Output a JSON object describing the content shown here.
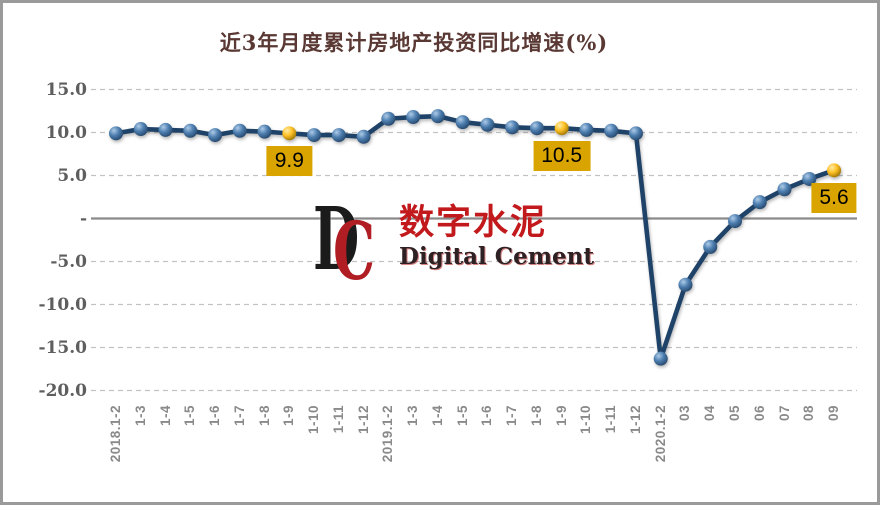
{
  "chart_data": {
    "type": "line",
    "title": "近3年月度累计房地产投资同比增速(%)",
    "xlabel": "",
    "ylabel": "",
    "ylim": [
      -20,
      15
    ],
    "grid": "horizontal-dashed",
    "legend": "none",
    "categories": [
      "2018.1-2",
      "1-3",
      "1-4",
      "1-5",
      "1-6",
      "1-7",
      "1-8",
      "1-9",
      "1-10",
      "1-11",
      "1-12",
      "2019.1-2",
      "1-3",
      "1-4",
      "1-5",
      "1-6",
      "1-7",
      "1-8",
      "1-9",
      "1-10",
      "1-11",
      "1-12",
      "2020.1-2",
      "03",
      "04",
      "05",
      "06",
      "07",
      "08",
      "09"
    ],
    "values": [
      9.9,
      10.4,
      10.3,
      10.2,
      9.7,
      10.2,
      10.1,
      9.9,
      9.7,
      9.7,
      9.5,
      11.6,
      11.8,
      11.9,
      11.2,
      10.9,
      10.6,
      10.5,
      10.5,
      10.3,
      10.2,
      9.9,
      -16.3,
      -7.7,
      -3.3,
      -0.3,
      1.9,
      3.4,
      4.6,
      5.6
    ],
    "yticks": [
      {
        "value": 15,
        "label": "15.0"
      },
      {
        "value": 10,
        "label": "10.0"
      },
      {
        "value": 5,
        "label": "5.0"
      },
      {
        "value": 0,
        "label": "-"
      },
      {
        "value": -5,
        "label": "-5.0"
      },
      {
        "value": -10,
        "label": "-10.0"
      },
      {
        "value": -15,
        "label": "-15.0"
      },
      {
        "value": -20,
        "label": "-20.0"
      }
    ],
    "highlighted_points": [
      {
        "index": 7,
        "label": "9.9"
      },
      {
        "index": 18,
        "label": "10.5"
      },
      {
        "index": 29,
        "label": "5.6"
      }
    ],
    "colors": {
      "line": "#1F4368",
      "marker": "#4E7FB0",
      "highlight_marker": "#FFC125",
      "callout_box": "#D9A400",
      "callout_text": "#000000",
      "title": "#5A3834",
      "y_label": "#5E5E5E",
      "x_label": "#8A8A8A",
      "gridline": "#C2C2C2",
      "zero_line": "#8A8A8A",
      "frame_border": "#9A9A9A"
    }
  },
  "watermark": {
    "logo_d": "D",
    "logo_c": "C",
    "cn": "数字水泥",
    "en": "Digital Cement"
  }
}
